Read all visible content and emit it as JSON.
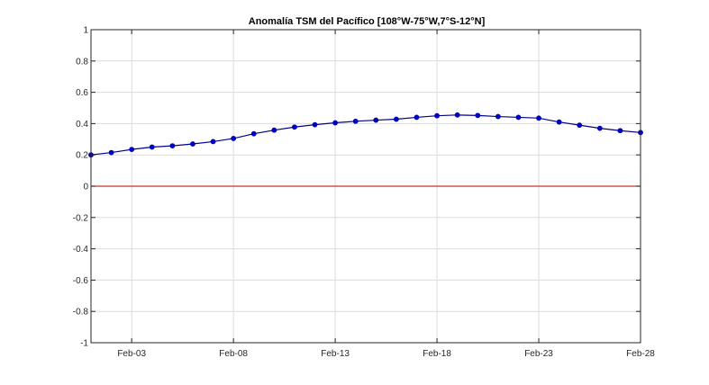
{
  "chart_data": {
    "type": "line",
    "title": "Anomalía TSM del Pacífico [108°W-75°W,7°S-12°N]",
    "xlabel": "",
    "ylabel": "",
    "x_start": "Feb-01",
    "x_end": "Feb-28",
    "x_ticks": [
      "Feb-03",
      "Feb-08",
      "Feb-13",
      "Feb-18",
      "Feb-23",
      "Feb-28"
    ],
    "y_ticks": [
      1,
      0.8,
      0.6,
      0.4,
      0.2,
      0,
      -0.2,
      -0.4,
      -0.6,
      -0.8,
      -1
    ],
    "ylim": [
      -1,
      1
    ],
    "grid": true,
    "baseline": 0,
    "x": [
      "Feb-01",
      "Feb-02",
      "Feb-03",
      "Feb-04",
      "Feb-05",
      "Feb-06",
      "Feb-07",
      "Feb-08",
      "Feb-09",
      "Feb-10",
      "Feb-11",
      "Feb-12",
      "Feb-13",
      "Feb-14",
      "Feb-15",
      "Feb-16",
      "Feb-17",
      "Feb-18",
      "Feb-19",
      "Feb-20",
      "Feb-21",
      "Feb-22",
      "Feb-23",
      "Feb-24",
      "Feb-25",
      "Feb-26",
      "Feb-27",
      "Feb-28"
    ],
    "series": [
      {
        "values": [
          0.2,
          0.215,
          0.235,
          0.25,
          0.258,
          0.27,
          0.285,
          0.305,
          0.335,
          0.358,
          0.378,
          0.393,
          0.405,
          0.415,
          0.422,
          0.428,
          0.44,
          0.45,
          0.455,
          0.452,
          0.445,
          0.44,
          0.435,
          0.41,
          0.39,
          0.37,
          0.355,
          0.343
        ],
        "color": "#00008B"
      }
    ],
    "colors": {
      "line": "#00008B",
      "marker": "#0000CD",
      "baseline": "#C0392B",
      "grid": "#DCDCDC",
      "axes": "#262626"
    }
  }
}
